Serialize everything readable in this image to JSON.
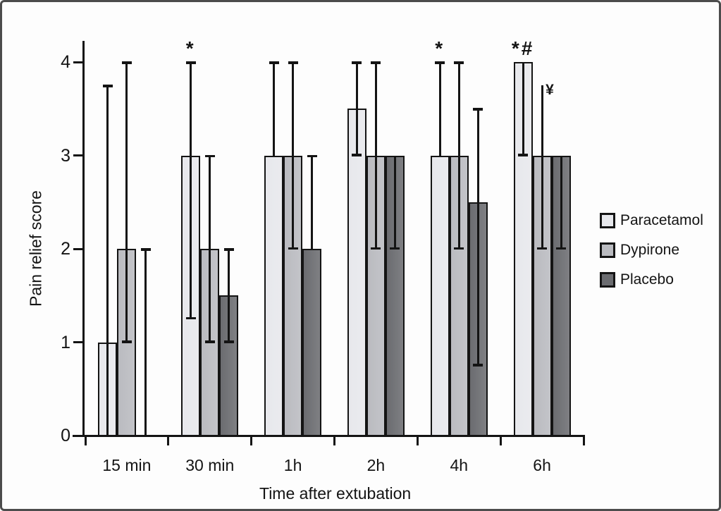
{
  "figure": {
    "background": "#fdfdfd",
    "frame_color": "#4c4c4c",
    "ink_color": "#141414"
  },
  "chart_data": {
    "type": "bar",
    "title": "",
    "xlabel": "Time after extubation",
    "ylabel": "Pain relief score",
    "ylim": [
      0,
      4.3
    ],
    "yticks": [
      0,
      1,
      2,
      3,
      4
    ],
    "grid": false,
    "legend_position": "right",
    "categories": [
      "15 min",
      "30 min",
      "1h",
      "2h",
      "4h",
      "6h"
    ],
    "series": [
      {
        "name": "Paracetamol",
        "color": "#e7e8ec",
        "values": [
          1,
          3,
          3,
          3.5,
          3,
          4
        ],
        "err_low": [
          0,
          1.25,
          3,
          3,
          3,
          3
        ],
        "err_high": [
          3.75,
          4,
          4,
          4,
          4,
          4
        ],
        "cap_low": [
          false,
          true,
          false,
          true,
          false,
          true
        ],
        "cap_high": [
          true,
          true,
          true,
          true,
          true,
          false
        ]
      },
      {
        "name": "Dypirone",
        "color": "#babbc0",
        "values": [
          2,
          2,
          3,
          3,
          3,
          3
        ],
        "err_low": [
          1,
          1,
          2,
          2,
          2,
          2
        ],
        "err_high": [
          4,
          3,
          4,
          4,
          4,
          3.75
        ],
        "cap_low": [
          true,
          true,
          true,
          true,
          true,
          true
        ],
        "cap_high": [
          true,
          true,
          true,
          true,
          true,
          false
        ]
      },
      {
        "name": "Placebo",
        "color": "#6b6c70",
        "values": [
          0,
          1.5,
          2,
          3,
          2.5,
          3
        ],
        "err_low": [
          0,
          1,
          2,
          2,
          0.75,
          2
        ],
        "err_high": [
          2,
          2,
          3,
          3,
          3.5,
          3
        ],
        "cap_low": [
          false,
          true,
          false,
          true,
          true,
          true
        ],
        "cap_high": [
          true,
          true,
          true,
          false,
          true,
          false
        ]
      }
    ],
    "annotations": [
      {
        "text": "*",
        "series": 0,
        "group": 1,
        "placement": "above"
      },
      {
        "text": "*",
        "series": 0,
        "group": 4,
        "placement": "above"
      },
      {
        "text": "*#",
        "series": 0,
        "group": 5,
        "placement": "above"
      },
      {
        "text": "¥",
        "series": 1,
        "group": 5,
        "placement": "top-right"
      }
    ],
    "legend": {
      "items": [
        "Paracetamol",
        "Dypirone",
        "Placebo"
      ]
    }
  }
}
